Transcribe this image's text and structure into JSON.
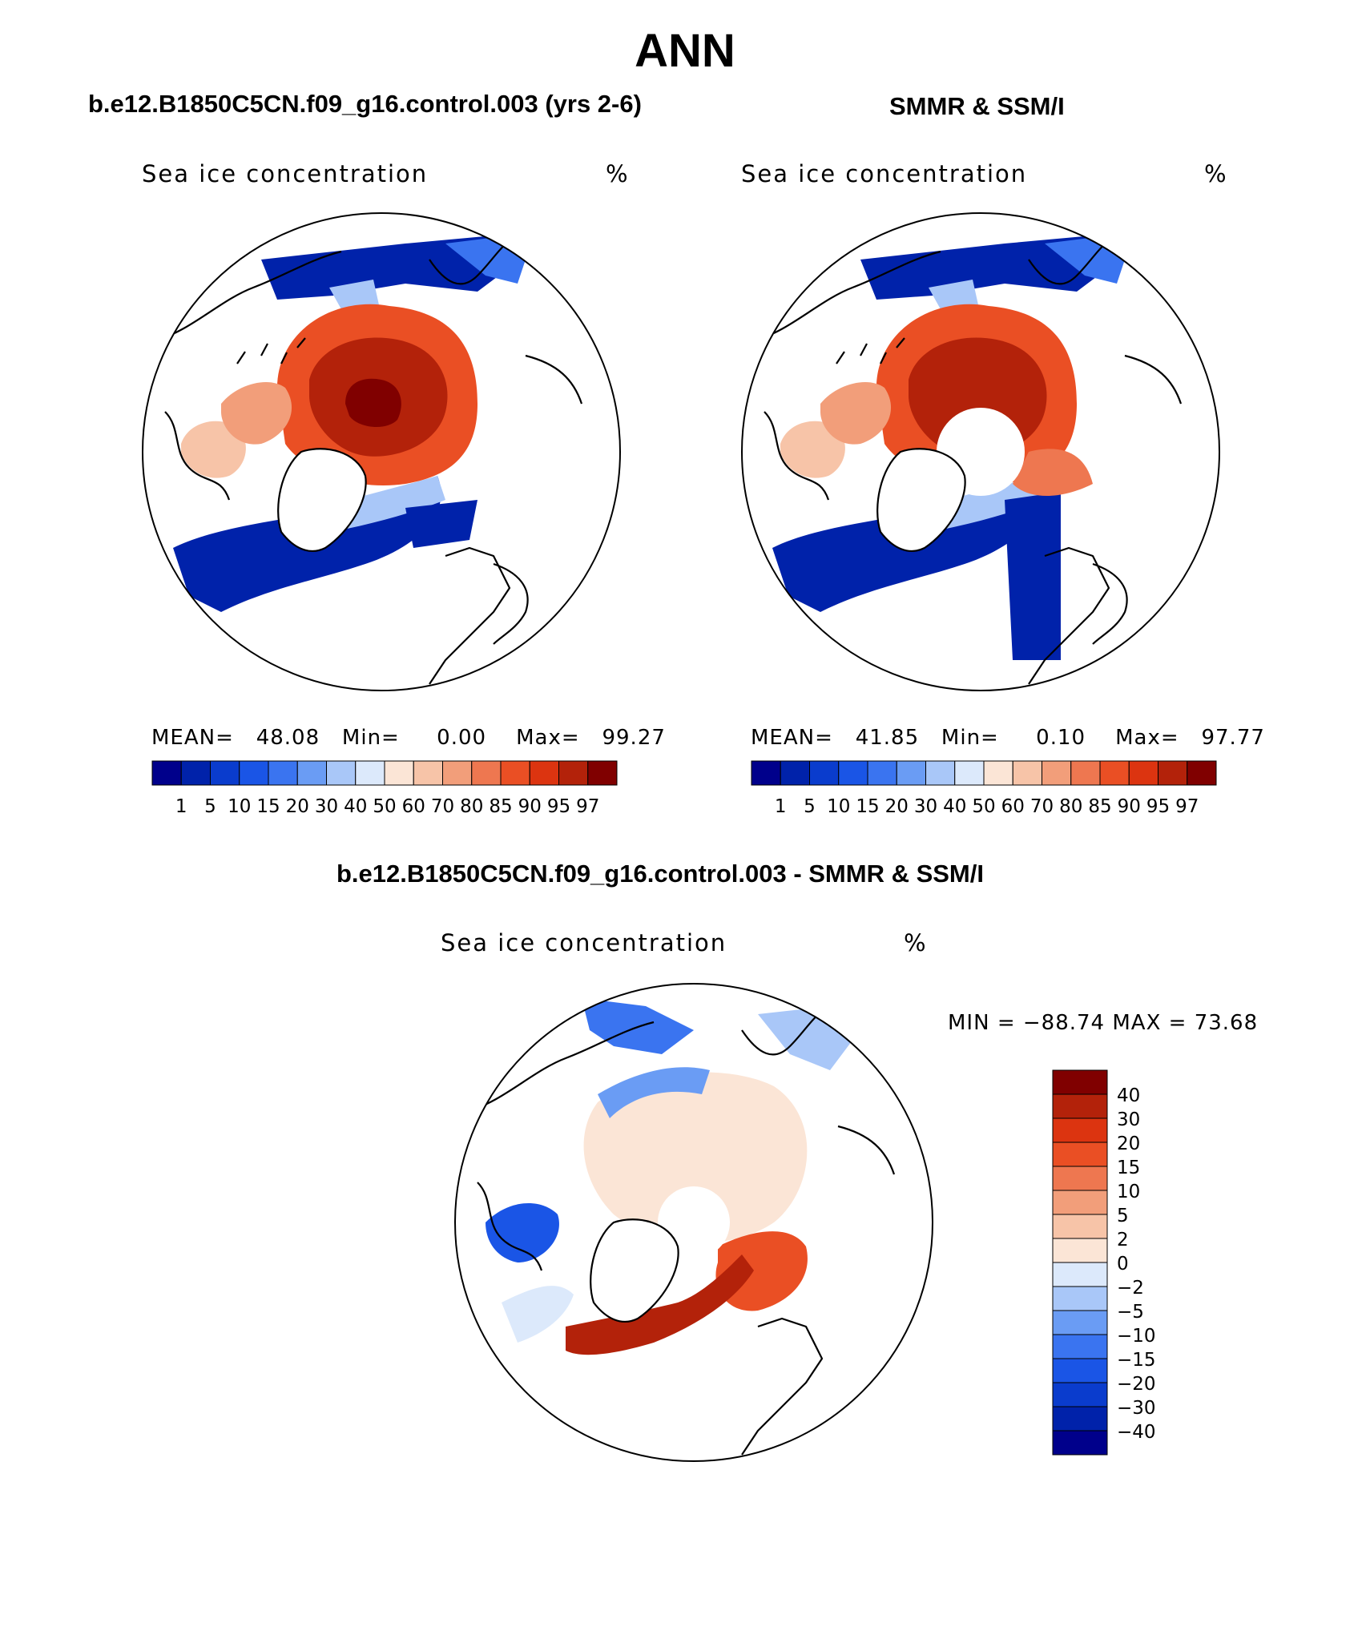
{
  "page_title": "ANN",
  "colors": {
    "ocean": "#ffffff",
    "land_outline": "#000000",
    "scale_main": [
      "#00008b",
      "#0022aa",
      "#0a3ccd",
      "#1a55e6",
      "#3a74f0",
      "#6a9cf4",
      "#a9c7f8",
      "#dce9fb",
      "#fbe5d6",
      "#f7c4a8",
      "#f29e7a",
      "#ee7750",
      "#ea4f24",
      "#dc3410",
      "#b3220a",
      "#800000"
    ],
    "scale_diff": [
      "#00008b",
      "#0022aa",
      "#0a3ccd",
      "#1a55e6",
      "#3a74f0",
      "#6a9cf4",
      "#a9c7f8",
      "#dce9fb",
      "#fbe5d6",
      "#f7c4a8",
      "#f29e7a",
      "#ee7750",
      "#ea4f24",
      "#dc3410",
      "#b3220a",
      "#800000"
    ]
  },
  "panels": [
    {
      "heading": "b.e12.B1850C5CN.f09_g16.control.003 (yrs 2-6)",
      "variable": "Sea ice concentration",
      "units": "%",
      "stats": {
        "mean_label": "MEAN=",
        "mean": "48.08",
        "min_label": "Min=",
        "min": "0.00",
        "max_label": "Max=",
        "max": "99.27"
      },
      "colorbar_labels": [
        "1",
        "5",
        "10",
        "15",
        "20",
        "30",
        "40",
        "50",
        "60",
        "70",
        "80",
        "85",
        "90",
        "95",
        "97"
      ],
      "has_pole_hole": false
    },
    {
      "heading": "SMMR & SSM/I",
      "variable": "Sea ice concentration",
      "units": "%",
      "stats": {
        "mean_label": "MEAN=",
        "mean": "41.85",
        "min_label": "Min=",
        "min": "0.10",
        "max_label": "Max=",
        "max": "97.77"
      },
      "colorbar_labels": [
        "1",
        "5",
        "10",
        "15",
        "20",
        "30",
        "40",
        "50",
        "60",
        "70",
        "80",
        "85",
        "90",
        "95",
        "97"
      ],
      "has_pole_hole": true
    }
  ],
  "diff_panel": {
    "heading": "b.e12.B1850C5CN.f09_g16.control.003 - SMMR & SSM/I",
    "variable": "Sea ice concentration",
    "units": "%",
    "minmax": "MIN = −88.74 MAX =  73.68",
    "colorbar_labels": [
      "40",
      "30",
      "20",
      "15",
      "10",
      "5",
      "2",
      "0",
      "−2",
      "−5",
      "−10",
      "−15",
      "−20",
      "−30",
      "−40"
    ]
  }
}
